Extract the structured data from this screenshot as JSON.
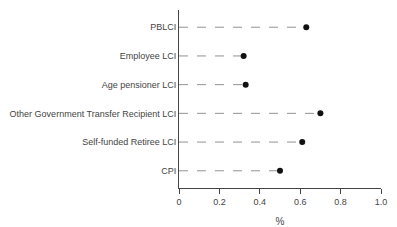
{
  "chart_data": {
    "type": "lollipop",
    "orientation": "horizontal",
    "categories": [
      "CPI",
      "Self-funded Retiree LCI",
      "Other Government Transfer Recipient LCI",
      "Age pensioner LCI",
      "Employee LCI",
      "PBLCI"
    ],
    "values": [
      0.5,
      0.61,
      0.7,
      0.33,
      0.32,
      0.63
    ],
    "xlabel": "%",
    "xlim": [
      0,
      1.0
    ],
    "xticks": [
      0,
      0.2,
      0.4,
      0.6,
      0.8,
      {
        "value": 1.0,
        "label": "1.0"
      }
    ],
    "color": "#111111",
    "marker": "circle",
    "line_style": "dashed",
    "grid": false
  }
}
